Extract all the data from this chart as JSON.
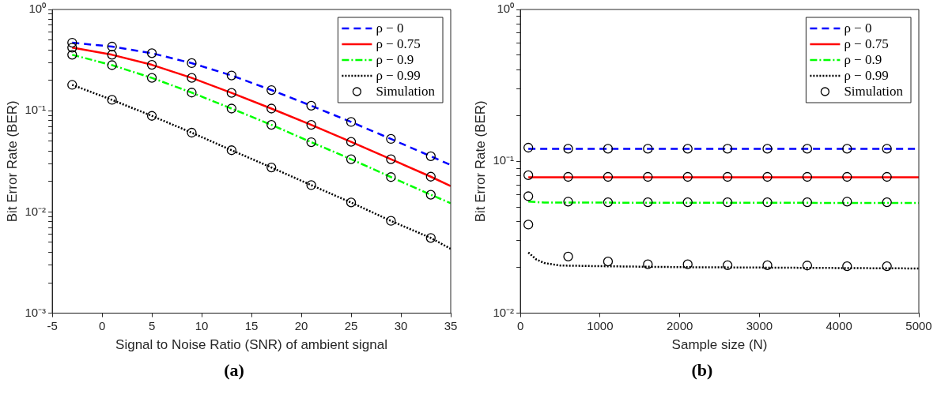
{
  "chart_data": [
    {
      "type": "line",
      "title": "(a)",
      "xlabel": "Signal to Noise Ratio (SNR) of ambient signal",
      "ylabel": "Bit Error Rate (BER)",
      "log": "y",
      "legend": "top right",
      "xlim": [
        -5,
        35
      ],
      "xticks": [
        -5,
        0,
        5,
        10,
        15,
        20,
        25,
        30,
        35
      ],
      "ylim": [
        0.001,
        1
      ],
      "yticks": [
        {
          "value": 0.001,
          "label": "10⁻³"
        },
        {
          "value": 0.002,
          "label": null
        },
        {
          "value": 0.003,
          "label": null
        },
        {
          "value": 0.004,
          "label": null
        },
        {
          "value": 0.005,
          "label": null
        },
        {
          "value": 0.006,
          "label": null
        },
        {
          "value": 0.007,
          "label": null
        },
        {
          "value": 0.008,
          "label": null
        },
        {
          "value": 0.009,
          "label": null
        },
        {
          "value": 0.01,
          "label": "10⁻²"
        },
        {
          "value": 0.02,
          "label": null
        },
        {
          "value": 0.03,
          "label": null
        },
        {
          "value": 0.04,
          "label": null
        },
        {
          "value": 0.05,
          "label": null
        },
        {
          "value": 0.06,
          "label": null
        },
        {
          "value": 0.07,
          "label": null
        },
        {
          "value": 0.08,
          "label": null
        },
        {
          "value": 0.09,
          "label": null
        },
        {
          "value": 0.1,
          "label": "10⁻¹"
        },
        {
          "value": 0.2,
          "label": null
        },
        {
          "value": 0.3,
          "label": null
        },
        {
          "value": 0.4,
          "label": null
        },
        {
          "value": 0.5,
          "label": null
        },
        {
          "value": 0.6,
          "label": null
        },
        {
          "value": 0.7,
          "label": null
        },
        {
          "value": 0.8,
          "label": null
        },
        {
          "value": 0.9,
          "label": null
        },
        {
          "value": 1,
          "label": "10⁰"
        }
      ],
      "series": [
        {
          "name": "ρ − 0",
          "type": "line",
          "line_style": "dashed",
          "color": "#0000ff",
          "x": [
            -3,
            1,
            5,
            9,
            13,
            17,
            21,
            25,
            29,
            33,
            35
          ],
          "values": [
            0.47,
            0.43,
            0.37,
            0.295,
            0.223,
            0.16,
            0.112,
            0.0774,
            0.0526,
            0.0355,
            0.0291
          ]
        },
        {
          "name": "ρ − 0.75",
          "type": "line",
          "line_style": "solid",
          "color": "#ff0000",
          "x": [
            -3,
            1,
            5,
            9,
            13,
            17,
            21,
            25,
            29,
            33,
            35
          ],
          "values": [
            0.42,
            0.357,
            0.284,
            0.211,
            0.15,
            0.105,
            0.0725,
            0.0492,
            0.0332,
            0.0223,
            0.018
          ]
        },
        {
          "name": "ρ − 0.9",
          "type": "line",
          "line_style": "dashdot",
          "color": "#00ff00",
          "x": [
            -3,
            1,
            5,
            9,
            13,
            17,
            21,
            25,
            29,
            33,
            35
          ],
          "values": [
            0.357,
            0.282,
            0.211,
            0.151,
            0.105,
            0.0725,
            0.0489,
            0.0332,
            0.0221,
            0.0148,
            0.0122
          ]
        },
        {
          "name": "ρ − 0.99",
          "type": "line",
          "line_style": "dotted",
          "color": "#000000",
          "x": [
            -3,
            1,
            5,
            9,
            13,
            17,
            21,
            25,
            29,
            33,
            35
          ],
          "values": [
            0.18,
            0.128,
            0.0889,
            0.0607,
            0.0407,
            0.0275,
            0.0184,
            0.0124,
            0.00816,
            0.00554,
            0.00432
          ]
        },
        {
          "name": "Simulation",
          "type": "scatter",
          "marker": "circle",
          "color": "#000000",
          "x": [
            -3,
            1,
            5,
            9,
            13,
            17,
            21,
            25,
            29,
            33,
            -3,
            1,
            5,
            9,
            13,
            17,
            21,
            25,
            29,
            33,
            -3,
            1,
            5,
            9,
            13,
            17,
            21,
            25,
            29,
            33,
            -3,
            1,
            5,
            9,
            13,
            17,
            21,
            25,
            29,
            33
          ],
          "values": [
            0.47,
            0.43,
            0.37,
            0.295,
            0.223,
            0.16,
            0.112,
            0.0774,
            0.0526,
            0.0355,
            0.42,
            0.357,
            0.284,
            0.211,
            0.15,
            0.105,
            0.0725,
            0.0492,
            0.0332,
            0.0223,
            0.357,
            0.282,
            0.211,
            0.151,
            0.105,
            0.0725,
            0.0489,
            0.0332,
            0.0221,
            0.0148,
            0.18,
            0.128,
            0.0889,
            0.0607,
            0.0407,
            0.0275,
            0.0184,
            0.0124,
            0.00816,
            0.00554
          ]
        }
      ]
    },
    {
      "type": "line",
      "title": "(b)",
      "xlabel": "Sample size (N)",
      "ylabel": "Bit Error Rate (BER)",
      "log": "y",
      "legend": "top right",
      "xlim": [
        0,
        5000
      ],
      "xticks": [
        0,
        1000,
        2000,
        3000,
        4000,
        5000
      ],
      "ylim": [
        0.01,
        1
      ],
      "yticks": [
        {
          "value": 0.01,
          "label": "10⁻²"
        },
        {
          "value": 0.02,
          "label": null
        },
        {
          "value": 0.03,
          "label": null
        },
        {
          "value": 0.04,
          "label": null
        },
        {
          "value": 0.05,
          "label": null
        },
        {
          "value": 0.06,
          "label": null
        },
        {
          "value": 0.07,
          "label": null
        },
        {
          "value": 0.08,
          "label": null
        },
        {
          "value": 0.09,
          "label": null
        },
        {
          "value": 0.1,
          "label": "10⁻¹"
        },
        {
          "value": 0.2,
          "label": null
        },
        {
          "value": 0.3,
          "label": null
        },
        {
          "value": 0.4,
          "label": null
        },
        {
          "value": 0.5,
          "label": null
        },
        {
          "value": 0.6,
          "label": null
        },
        {
          "value": 0.7,
          "label": null
        },
        {
          "value": 0.8,
          "label": null
        },
        {
          "value": 0.9,
          "label": null
        },
        {
          "value": 1,
          "label": "10⁰"
        }
      ],
      "series": [
        {
          "name": "ρ − 0",
          "type": "line",
          "line_style": "dashed",
          "color": "#0000ff",
          "x": [
            100,
            5000
          ],
          "values": [
            0.121,
            0.121
          ]
        },
        {
          "name": "ρ − 0.75",
          "type": "line",
          "line_style": "solid",
          "color": "#ff0000",
          "x": [
            100,
            5000
          ],
          "values": [
            0.0786,
            0.0786
          ]
        },
        {
          "name": "ρ − 0.9",
          "type": "line",
          "line_style": "dashdot",
          "color": "#00ff00",
          "x": [
            100,
            300,
            5000
          ],
          "values": [
            0.0543,
            0.0535,
            0.0532
          ]
        },
        {
          "name": "ρ − 0.99",
          "type": "line",
          "line_style": "dotted",
          "color": "#000000",
          "x": [
            100,
            200,
            300,
            500,
            1000,
            2000,
            5000
          ],
          "values": [
            0.0251,
            0.0226,
            0.0214,
            0.0206,
            0.0204,
            0.0201,
            0.0197
          ]
        },
        {
          "name": "Simulation",
          "type": "scatter",
          "marker": "circle",
          "color": "#000000",
          "x": [
            100,
            600,
            1100,
            1600,
            2100,
            2600,
            3100,
            3600,
            4100,
            4600,
            100,
            600,
            1100,
            1600,
            2100,
            2600,
            3100,
            3600,
            4100,
            4600,
            100,
            600,
            1100,
            1600,
            2100,
            2600,
            3100,
            3600,
            4100,
            4600,
            100,
            600,
            1100,
            1600,
            2100,
            2600,
            3100,
            3600,
            4100,
            4600
          ],
          "values": [
            0.123,
            0.121,
            0.121,
            0.121,
            0.121,
            0.121,
            0.121,
            0.121,
            0.121,
            0.121,
            0.081,
            0.079,
            0.079,
            0.079,
            0.079,
            0.079,
            0.079,
            0.079,
            0.079,
            0.079,
            0.0589,
            0.0543,
            0.0538,
            0.0538,
            0.0538,
            0.0538,
            0.0538,
            0.0538,
            0.0543,
            0.0538,
            0.0383,
            0.0236,
            0.0219,
            0.021,
            0.021,
            0.0207,
            0.0207,
            0.0206,
            0.0204,
            0.0204
          ]
        }
      ]
    }
  ]
}
